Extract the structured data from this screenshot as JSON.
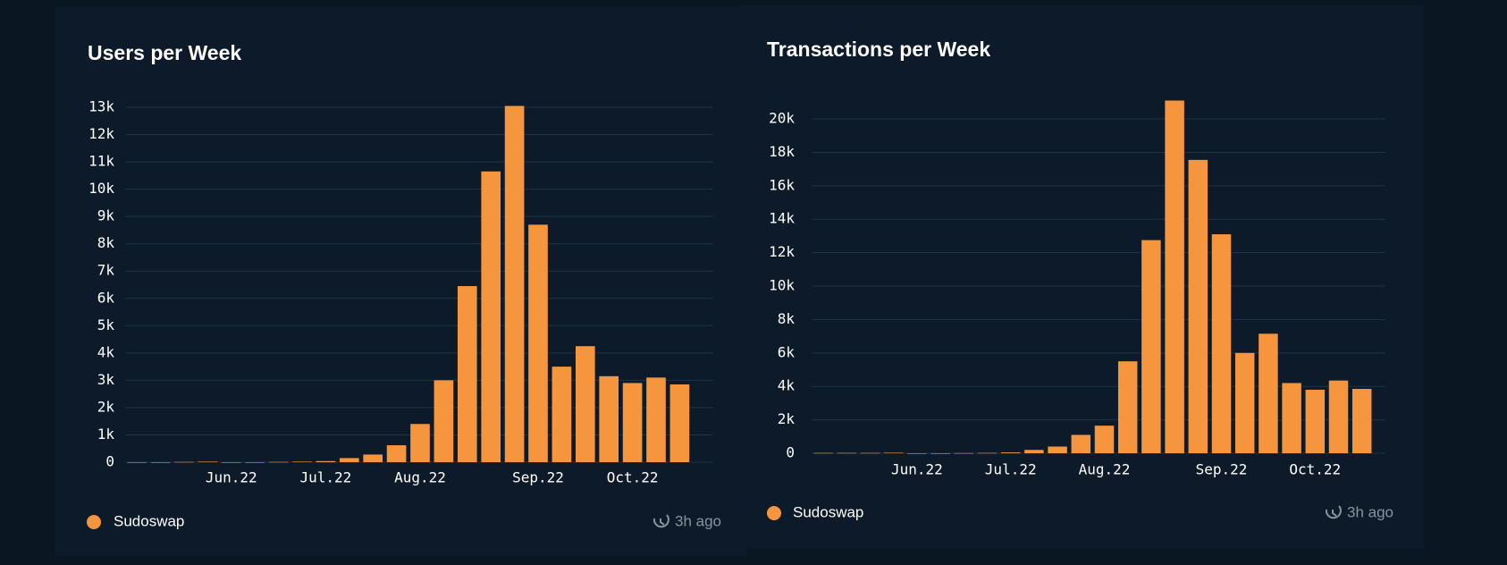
{
  "chart_data": [
    {
      "type": "bar",
      "title": "Users per Week",
      "note": "3h ago",
      "categories": [
        null,
        null,
        null,
        null,
        "Jun.22",
        null,
        null,
        null,
        "Jul.22",
        null,
        null,
        null,
        "Aug.22",
        null,
        null,
        null,
        null,
        "Sep.22",
        null,
        null,
        null,
        "Oct.22",
        null,
        null
      ],
      "series": [
        {
          "name": "Sudoswap",
          "color": "#f5953d",
          "values": [
            0,
            0,
            10,
            20,
            0,
            0,
            10,
            20,
            40,
            150,
            280,
            620,
            1400,
            3000,
            6450,
            10650,
            13050,
            8700,
            3500,
            4250,
            3150,
            2900,
            3100,
            2850
          ]
        }
      ],
      "ylim": [
        0,
        13000
      ],
      "yticks": [
        0,
        {
          "value": 1000,
          "label": "1k"
        },
        {
          "value": 2000,
          "label": "2k"
        },
        {
          "value": 3000,
          "label": "3k"
        },
        {
          "value": 4000,
          "label": "4k"
        },
        {
          "value": 5000,
          "label": "5k"
        },
        {
          "value": 6000,
          "label": "6k"
        },
        {
          "value": 7000,
          "label": "7k"
        },
        {
          "value": 8000,
          "label": "8k"
        },
        {
          "value": 9000,
          "label": "9k"
        },
        {
          "value": 10000,
          "label": "10k"
        },
        {
          "value": 11000,
          "label": "11k"
        },
        {
          "value": 12000,
          "label": "12k"
        },
        {
          "value": 13000,
          "label": "13k"
        }
      ],
      "grid": true
    },
    {
      "type": "bar",
      "title": "Transactions per Week",
      "note": "3h ago",
      "categories": [
        null,
        null,
        null,
        null,
        "Jun.22",
        null,
        null,
        null,
        "Jul.22",
        null,
        null,
        null,
        "Aug.22",
        null,
        null,
        null,
        null,
        "Sep.22",
        null,
        null,
        null,
        "Oct.22",
        null,
        null
      ],
      "series": [
        {
          "name": "Sudoswap",
          "color": "#f5953d",
          "values": [
            20,
            20,
            20,
            30,
            0,
            0,
            10,
            20,
            50,
            200,
            400,
            1100,
            1650,
            5500,
            12750,
            21100,
            17550,
            13100,
            6000,
            7150,
            4200,
            3800,
            4350,
            3850
          ]
        }
      ],
      "ylim": [
        0,
        21500
      ],
      "yticks": [
        0,
        {
          "value": 2000,
          "label": "2k"
        },
        {
          "value": 4000,
          "label": "4k"
        },
        {
          "value": 6000,
          "label": "6k"
        },
        {
          "value": 8000,
          "label": "8k"
        },
        {
          "value": 10000,
          "label": "10k"
        },
        {
          "value": 12000,
          "label": "12k"
        },
        {
          "value": 14000,
          "label": "14k"
        },
        {
          "value": 16000,
          "label": "16k"
        },
        {
          "value": 18000,
          "label": "18k"
        },
        {
          "value": 20000,
          "label": "20k"
        }
      ],
      "grid": true
    }
  ]
}
